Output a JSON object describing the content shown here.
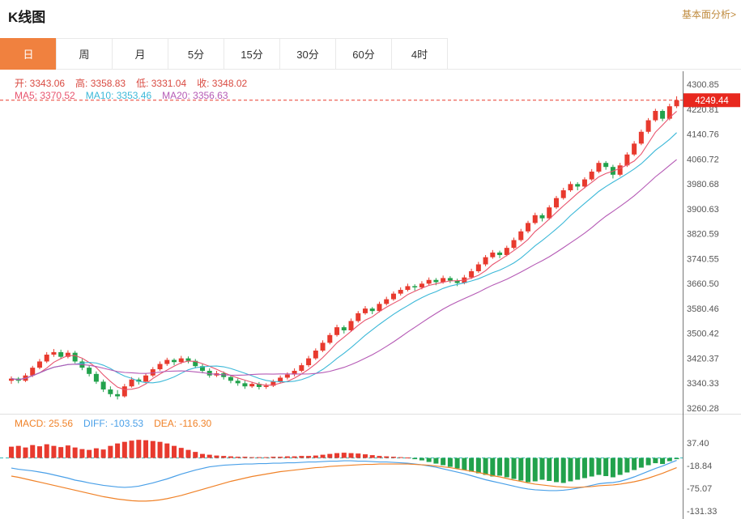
{
  "header": {
    "title": "K线图",
    "analysis_link": "基本面分析>"
  },
  "tabs": {
    "items": [
      "日",
      "周",
      "月",
      "5分",
      "15分",
      "30分",
      "60分",
      "4时"
    ],
    "names": [
      "tab-day",
      "tab-week",
      "tab-month",
      "tab-5min",
      "tab-15min",
      "tab-30min",
      "tab-60min",
      "tab-4hour"
    ],
    "active_index": 0,
    "active_color": "#f0813f",
    "active_text_color": "#ffffff"
  },
  "overlay": {
    "ohlc": [
      {
        "name": "ohlc-open",
        "label": "开:",
        "value": "3343.06",
        "color": "#d94a41"
      },
      {
        "name": "ohlc-high",
        "label": "高:",
        "value": "3358.83",
        "color": "#d94a41"
      },
      {
        "name": "ohlc-low",
        "label": "低:",
        "value": "3331.04",
        "color": "#d94a41"
      },
      {
        "name": "ohlc-close",
        "label": "收:",
        "value": "3348.02",
        "color": "#d94a41"
      }
    ],
    "ma": [
      {
        "name": "ma5-value",
        "label": "MA5:",
        "value": "3370.52",
        "color": "#e8546e"
      },
      {
        "name": "ma10-value",
        "label": "MA10:",
        "value": "3353.46",
        "color": "#3bb8d8"
      },
      {
        "name": "ma20-value",
        "label": "MA20:",
        "value": "3356.63",
        "color": "#b55ab5"
      }
    ],
    "macd": [
      {
        "name": "macd-value",
        "label": "MACD:",
        "value": "25.56",
        "color": "#f08228"
      },
      {
        "name": "diff-value",
        "label": "DIFF:",
        "value": "-103.53",
        "color": "#4aa0e8"
      },
      {
        "name": "dea-value",
        "label": "DEA:",
        "value": "-116.30",
        "color": "#f08228"
      }
    ]
  },
  "chart_data": {
    "type": "candlestick+macd",
    "price_axis": {
      "max": 4300.85,
      "min": 3260.28,
      "labels": [
        "4300.85",
        "4220.81",
        "4140.76",
        "4060.72",
        "3980.68",
        "3900.63",
        "3820.59",
        "3740.55",
        "3660.50",
        "3580.46",
        "3500.42",
        "3420.37",
        "3340.33",
        "3260.28"
      ]
    },
    "last_price": {
      "value": 4249.44,
      "label": "4249.44"
    },
    "ma_periods": [
      5,
      10,
      20
    ],
    "candles": [
      [
        3348,
        3362,
        3338,
        3355
      ],
      [
        3355,
        3360,
        3340,
        3348
      ],
      [
        3348,
        3372,
        3344,
        3365
      ],
      [
        3365,
        3396,
        3360,
        3390
      ],
      [
        3390,
        3418,
        3385,
        3410
      ],
      [
        3410,
        3440,
        3405,
        3432
      ],
      [
        3432,
        3450,
        3425,
        3440
      ],
      [
        3440,
        3448,
        3418,
        3425
      ],
      [
        3425,
        3446,
        3420,
        3438
      ],
      [
        3438,
        3444,
        3404,
        3410
      ],
      [
        3410,
        3418,
        3382,
        3390
      ],
      [
        3390,
        3398,
        3362,
        3370
      ],
      [
        3370,
        3378,
        3338,
        3345
      ],
      [
        3345,
        3352,
        3312,
        3320
      ],
      [
        3320,
        3330,
        3296,
        3305
      ],
      [
        3305,
        3318,
        3288,
        3298
      ],
      [
        3298,
        3338,
        3294,
        3330
      ],
      [
        3330,
        3360,
        3326,
        3352
      ],
      [
        3352,
        3358,
        3336,
        3345
      ],
      [
        3345,
        3372,
        3340,
        3365
      ],
      [
        3365,
        3392,
        3360,
        3385
      ],
      [
        3385,
        3410,
        3380,
        3402
      ],
      [
        3402,
        3422,
        3396,
        3415
      ],
      [
        3415,
        3420,
        3398,
        3408
      ],
      [
        3408,
        3428,
        3402,
        3420
      ],
      [
        3420,
        3426,
        3404,
        3412
      ],
      [
        3412,
        3418,
        3388,
        3395
      ],
      [
        3395,
        3402,
        3372,
        3380
      ],
      [
        3380,
        3388,
        3358,
        3365
      ],
      [
        3365,
        3380,
        3360,
        3372
      ],
      [
        3372,
        3378,
        3352,
        3360
      ],
      [
        3360,
        3366,
        3340,
        3348
      ],
      [
        3348,
        3355,
        3332,
        3340
      ],
      [
        3340,
        3348,
        3322,
        3330
      ],
      [
        3330,
        3345,
        3325,
        3338
      ],
      [
        3338,
        3344,
        3320,
        3328
      ],
      [
        3328,
        3340,
        3322,
        3332
      ],
      [
        3332,
        3352,
        3328,
        3345
      ],
      [
        3345,
        3365,
        3340,
        3358
      ],
      [
        3358,
        3375,
        3352,
        3368
      ],
      [
        3368,
        3388,
        3362,
        3380
      ],
      [
        3380,
        3405,
        3375,
        3398
      ],
      [
        3398,
        3428,
        3392,
        3420
      ],
      [
        3420,
        3452,
        3415,
        3445
      ],
      [
        3445,
        3478,
        3440,
        3470
      ],
      [
        3470,
        3502,
        3465,
        3495
      ],
      [
        3495,
        3528,
        3490,
        3520
      ],
      [
        3520,
        3526,
        3500,
        3510
      ],
      [
        3510,
        3548,
        3505,
        3540
      ],
      [
        3540,
        3572,
        3535,
        3565
      ],
      [
        3565,
        3588,
        3560,
        3580
      ],
      [
        3580,
        3585,
        3562,
        3572
      ],
      [
        3572,
        3602,
        3568,
        3595
      ],
      [
        3595,
        3618,
        3590,
        3610
      ],
      [
        3610,
        3635,
        3605,
        3628
      ],
      [
        3628,
        3648,
        3622,
        3640
      ],
      [
        3640,
        3660,
        3635,
        3652
      ],
      [
        3652,
        3658,
        3638,
        3648
      ],
      [
        3648,
        3668,
        3642,
        3660
      ],
      [
        3660,
        3680,
        3655,
        3672
      ],
      [
        3672,
        3678,
        3655,
        3665
      ],
      [
        3665,
        3686,
        3660,
        3678
      ],
      [
        3678,
        3684,
        3662,
        3670
      ],
      [
        3670,
        3676,
        3652,
        3662
      ],
      [
        3662,
        3688,
        3658,
        3680
      ],
      [
        3680,
        3708,
        3675,
        3700
      ],
      [
        3700,
        3730,
        3695,
        3722
      ],
      [
        3722,
        3752,
        3716,
        3745
      ],
      [
        3745,
        3768,
        3740,
        3760
      ],
      [
        3760,
        3766,
        3742,
        3752
      ],
      [
        3752,
        3782,
        3748,
        3775
      ],
      [
        3775,
        3808,
        3770,
        3800
      ],
      [
        3800,
        3836,
        3795,
        3828
      ],
      [
        3828,
        3862,
        3822,
        3855
      ],
      [
        3855,
        3888,
        3850,
        3880
      ],
      [
        3880,
        3886,
        3860,
        3870
      ],
      [
        3870,
        3912,
        3865,
        3905
      ],
      [
        3905,
        3942,
        3900,
        3935
      ],
      [
        3935,
        3968,
        3930,
        3960
      ],
      [
        3960,
        3988,
        3955,
        3980
      ],
      [
        3980,
        3986,
        3960,
        3972
      ],
      [
        3972,
        4002,
        3966,
        3995
      ],
      [
        3995,
        4028,
        3990,
        4020
      ],
      [
        4020,
        4055,
        4015,
        4048
      ],
      [
        4048,
        4054,
        4026,
        4035
      ],
      [
        4035,
        4042,
        3998,
        4010
      ],
      [
        4010,
        4048,
        4005,
        4040
      ],
      [
        4040,
        4082,
        4035,
        4075
      ],
      [
        4075,
        4118,
        4070,
        4110
      ],
      [
        4110,
        4155,
        4105,
        4148
      ],
      [
        4148,
        4192,
        4142,
        4185
      ],
      [
        4185,
        4222,
        4180,
        4215
      ],
      [
        4215,
        4220,
        4182,
        4190
      ],
      [
        4190,
        4238,
        4185,
        4230
      ],
      [
        4230,
        4262,
        4224,
        4249.44
      ]
    ],
    "macd_axis": {
      "labels": [
        "37.40",
        "-18.84",
        "-75.07",
        "-131.33"
      ]
    },
    "macd_hist": [
      28,
      30,
      26,
      32,
      29,
      34,
      30,
      27,
      31,
      26,
      22,
      20,
      24,
      21,
      30,
      36,
      40,
      43,
      45,
      44,
      42,
      40,
      36,
      30,
      25,
      20,
      15,
      10,
      8,
      6,
      5,
      4,
      3,
      3,
      2,
      2,
      2,
      3,
      3,
      4,
      4,
      5,
      5,
      6,
      8,
      10,
      12,
      13,
      12,
      11,
      9,
      7,
      5,
      4,
      3,
      2,
      1,
      -3,
      -6,
      -10,
      -14,
      -18,
      -22,
      -26,
      -30,
      -34,
      -38,
      -42,
      -46,
      -44,
      -48,
      -52,
      -56,
      -60,
      -58,
      -54,
      -57,
      -60,
      -62,
      -58,
      -54,
      -50,
      -46,
      -42,
      -45,
      -48,
      -42,
      -36,
      -30,
      -24,
      -18,
      -13,
      -15,
      -8,
      -3
    ],
    "diff": [
      -25,
      -28,
      -30,
      -32,
      -35,
      -38,
      -42,
      -46,
      -50,
      -55,
      -58,
      -62,
      -65,
      -68,
      -70,
      -72,
      -73,
      -72,
      -70,
      -66,
      -62,
      -57,
      -52,
      -46,
      -40,
      -35,
      -30,
      -26,
      -22,
      -20,
      -18,
      -17,
      -16,
      -15,
      -15,
      -14,
      -14,
      -13,
      -13,
      -12,
      -12,
      -11,
      -10,
      -10,
      -9,
      -8,
      -8,
      -7,
      -7,
      -8,
      -8,
      -9,
      -10,
      -10,
      -11,
      -12,
      -13,
      -15,
      -17,
      -20,
      -23,
      -27,
      -31,
      -35,
      -39,
      -44,
      -49,
      -54,
      -58,
      -62,
      -66,
      -70,
      -74,
      -77,
      -79,
      -80,
      -81,
      -81,
      -80,
      -78,
      -75,
      -72,
      -68,
      -64,
      -62,
      -61,
      -58,
      -53,
      -47,
      -40,
      -33,
      -26,
      -20,
      -13,
      -6
    ],
    "dea": [
      -45,
      -48,
      -52,
      -56,
      -60,
      -64,
      -68,
      -72,
      -76,
      -80,
      -84,
      -88,
      -92,
      -96,
      -99,
      -102,
      -104,
      -106,
      -107,
      -107,
      -106,
      -104,
      -101,
      -97,
      -93,
      -88,
      -83,
      -78,
      -73,
      -68,
      -63,
      -58,
      -54,
      -50,
      -46,
      -43,
      -40,
      -37,
      -34,
      -32,
      -30,
      -28,
      -26,
      -24,
      -23,
      -21,
      -20,
      -19,
      -18,
      -17,
      -16,
      -16,
      -15,
      -15,
      -15,
      -15,
      -15,
      -16,
      -17,
      -18,
      -20,
      -22,
      -24,
      -27,
      -30,
      -33,
      -36,
      -40,
      -44,
      -47,
      -51,
      -55,
      -58,
      -62,
      -65,
      -67,
      -69,
      -71,
      -72,
      -73,
      -73,
      -72,
      -71,
      -69,
      -68,
      -67,
      -65,
      -62,
      -59,
      -55,
      -50,
      -44,
      -38,
      -31,
      -24
    ],
    "colors": {
      "up": "#e83a2e",
      "down": "#22a24c",
      "ma5": "#e8546e",
      "ma10": "#3bb8d8",
      "ma20": "#b55ab5",
      "diff": "#4aa0e8",
      "dea": "#f08228",
      "badge": "#e8281e",
      "badge_text": "#ffffff",
      "zero_dash": "#2bb8b8",
      "last_dash": "#e83a2e",
      "axis_text": "#555555",
      "axis_line": "#777777",
      "separator": "#e0e0e0"
    }
  }
}
